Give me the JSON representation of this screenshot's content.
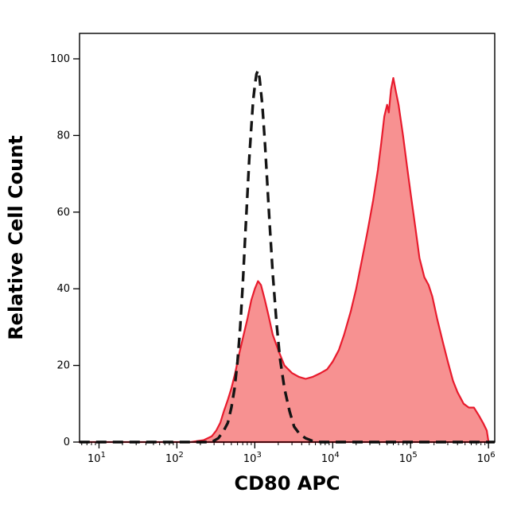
{
  "figure": {
    "kind": "flow-cytometry-histogram"
  },
  "chart_data": {
    "type": "area",
    "x_scale": "log",
    "xlabel": "CD80 APC",
    "ylabel": "Relative Cell Count",
    "xlim_exponents": [
      0.75,
      6.08
    ],
    "x_tick_base": "10",
    "x_tick_exponents": [
      1,
      2,
      3,
      4,
      5,
      6
    ],
    "y_ticks": [
      0,
      20,
      40,
      60,
      80,
      100
    ],
    "ylim": [
      0,
      100
    ],
    "grid": false,
    "legend": "none",
    "series": [
      {
        "id": "cd80-stained",
        "name": "CD80 APC stained sample (red filled histogram)",
        "color": "#e81b2d",
        "fill": "#f79191",
        "stroke_width": 2.2,
        "dash": "",
        "points": [
          [
            5.6,
            0
          ],
          [
            150,
            0
          ],
          [
            220,
            0.5
          ],
          [
            280,
            1.5
          ],
          [
            320,
            3
          ],
          [
            360,
            5
          ],
          [
            400,
            8
          ],
          [
            450,
            11
          ],
          [
            500,
            14
          ],
          [
            560,
            18
          ],
          [
            630,
            23
          ],
          [
            700,
            27
          ],
          [
            800,
            32
          ],
          [
            900,
            37
          ],
          [
            1000,
            40
          ],
          [
            1100,
            42
          ],
          [
            1200,
            41
          ],
          [
            1350,
            37
          ],
          [
            1500,
            33
          ],
          [
            1700,
            28
          ],
          [
            2000,
            24
          ],
          [
            2400,
            20
          ],
          [
            3000,
            18
          ],
          [
            3700,
            17
          ],
          [
            4500,
            16.5
          ],
          [
            5500,
            17
          ],
          [
            7000,
            18
          ],
          [
            8500,
            19
          ],
          [
            10000,
            21
          ],
          [
            12000,
            24
          ],
          [
            14000,
            28
          ],
          [
            17000,
            34
          ],
          [
            20000,
            40
          ],
          [
            24000,
            48
          ],
          [
            28000,
            55
          ],
          [
            33000,
            63
          ],
          [
            38000,
            71
          ],
          [
            42000,
            78
          ],
          [
            46000,
            85
          ],
          [
            50000,
            88
          ],
          [
            52500,
            86
          ],
          [
            56000,
            92
          ],
          [
            60000,
            95
          ],
          [
            64000,
            92
          ],
          [
            70000,
            88
          ],
          [
            80000,
            80
          ],
          [
            90000,
            72
          ],
          [
            100000,
            65
          ],
          [
            115000,
            56
          ],
          [
            130000,
            48
          ],
          [
            150000,
            43
          ],
          [
            170000,
            41
          ],
          [
            190000,
            38
          ],
          [
            220000,
            32
          ],
          [
            260000,
            26
          ],
          [
            300000,
            21
          ],
          [
            350000,
            16
          ],
          [
            400000,
            13
          ],
          [
            480000,
            10
          ],
          [
            560000,
            9
          ],
          [
            650000,
            9
          ],
          [
            750000,
            7
          ],
          [
            850000,
            5
          ],
          [
            950000,
            3
          ],
          [
            1000000,
            0
          ]
        ]
      },
      {
        "id": "isotype-control",
        "name": "Unstained / isotype control (black dashed histogram)",
        "color": "#141414",
        "fill": "",
        "stroke_width": 3.4,
        "dash": "13 8",
        "points": [
          [
            5.6,
            0
          ],
          [
            280,
            0
          ],
          [
            340,
            1
          ],
          [
            400,
            3
          ],
          [
            450,
            5
          ],
          [
            500,
            9
          ],
          [
            550,
            14
          ],
          [
            600,
            21
          ],
          [
            650,
            30
          ],
          [
            700,
            41
          ],
          [
            750,
            53
          ],
          [
            800,
            64
          ],
          [
            850,
            74
          ],
          [
            900,
            82
          ],
          [
            950,
            89
          ],
          [
            1000,
            93
          ],
          [
            1050,
            96
          ],
          [
            1100,
            97
          ],
          [
            1150,
            95
          ],
          [
            1250,
            88
          ],
          [
            1350,
            78
          ],
          [
            1450,
            67
          ],
          [
            1550,
            57
          ],
          [
            1700,
            44
          ],
          [
            1900,
            31
          ],
          [
            2100,
            22
          ],
          [
            2400,
            14
          ],
          [
            2800,
            8
          ],
          [
            3200,
            4
          ],
          [
            3800,
            2
          ],
          [
            4500,
            1
          ],
          [
            5500,
            0.3
          ],
          [
            7000,
            0
          ],
          [
            1200000,
            0
          ]
        ]
      }
    ]
  }
}
